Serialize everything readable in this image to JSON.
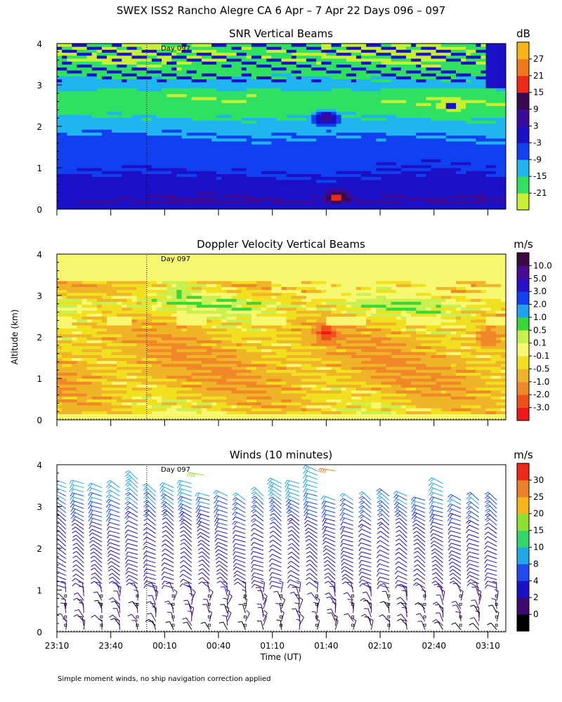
{
  "figure": {
    "title": "SWEX ISS2 Rancho Alegre CA   6 Apr –  7 Apr 22 Days 096 – 097",
    "ylabel": "Altitude (km)",
    "xlabel": "Time (UT)",
    "footnote": "Simple moment winds, no ship navigation correction applied",
    "day_marker_label": "Day 097",
    "day_marker_time": "00:00"
  },
  "colors": {
    "snr": [
      "#c8f032",
      "#30e060",
      "#20b4f0",
      "#1040f0",
      "#1a10c8",
      "#3c0a9a",
      "#3a0a50",
      "#f02818",
      "#f07818",
      "#f8b418"
    ],
    "doppler": [
      "#f01818",
      "#f05018",
      "#f08828",
      "#f0b428",
      "#f0e020",
      "#f8f870",
      "#c8f050",
      "#38d838",
      "#20a0f0",
      "#1040f0",
      "#2810c8",
      "#4a0a98",
      "#3a0a40"
    ],
    "winds": [
      "#000000",
      "#3c0a6e",
      "#1a10c8",
      "#1e4cf0",
      "#20a8e8",
      "#30d868",
      "#90e030",
      "#f8b418",
      "#f08028",
      "#f02818"
    ]
  },
  "chart_data": [
    {
      "type": "heatmap",
      "title": "SNR Vertical Beams",
      "unit": "dB",
      "xlabel": "",
      "ylabel": "Altitude (km)",
      "xlim": [
        -50,
        200
      ],
      "ylim": [
        0,
        4
      ],
      "x_tick_minutes": [
        -50,
        -20,
        10,
        40,
        70,
        100,
        130,
        160,
        190
      ],
      "x_tick_labels": [],
      "y_ticks": [
        0,
        1,
        2,
        3,
        4
      ],
      "y_tick_labels": [
        "0",
        "1",
        "2",
        "3",
        "4"
      ],
      "colorbar_labels": [
        "-21",
        "-15",
        "-9",
        "-3",
        "3",
        "9",
        "15",
        "21",
        "27"
      ],
      "colorbar_values": [
        -21,
        -15,
        -9,
        -3,
        3,
        9,
        15,
        21,
        27
      ],
      "cmin": -24,
      "cmax": 30,
      "profile_altitude_km": [
        0.15,
        0.5,
        1.0,
        1.5,
        1.8,
        2.0,
        2.2,
        2.4,
        2.6,
        2.8,
        3.0,
        3.3,
        3.6,
        3.9
      ],
      "profile_db": [
        4,
        0,
        -4,
        -7,
        -9,
        -12,
        -15,
        -18,
        -20,
        -19,
        -11,
        -18,
        -21,
        -21
      ],
      "features": [
        {
          "time_min": 106,
          "altitude_km": 0.3,
          "db": 20
        },
        {
          "time_min": 100,
          "altitude_km": 2.2,
          "db": 12
        },
        {
          "time_min": 170,
          "altitude_km": 2.5,
          "db": -26
        }
      ]
    },
    {
      "type": "heatmap",
      "title": "Doppler Velocity Vertical Beams",
      "unit": "m/s",
      "xlabel": "",
      "ylabel": "Altitude (km)",
      "xlim": [
        -50,
        200
      ],
      "ylim": [
        0,
        4
      ],
      "x_tick_minutes": [
        -50,
        -20,
        10,
        40,
        70,
        100,
        130,
        160,
        190
      ],
      "x_tick_labels": [],
      "y_ticks": [
        0,
        1,
        2,
        3,
        4
      ],
      "y_tick_labels": [
        "0",
        "1",
        "2",
        "3",
        "4"
      ],
      "colorbar_labels": [
        "-3.0",
        "-2.0",
        "-1.0",
        "-0.5",
        "-0.1",
        "0.1",
        "0.5",
        "1.0",
        "2.0",
        "3.0",
        "5.0",
        "10.0"
      ],
      "colorbar_values": [
        -3.0,
        -2.0,
        -1.0,
        -0.5,
        -0.1,
        0.1,
        0.5,
        1.0,
        2.0,
        3.0,
        5.0,
        10.0
      ],
      "profile_altitude_km": [
        0.15,
        0.6,
        1.0,
        1.5,
        2.0,
        2.4,
        2.8,
        3.2
      ],
      "profile_ms": [
        -0.3,
        -0.6,
        -0.8,
        -0.8,
        -0.7,
        -0.4,
        0.2,
        -0.5
      ],
      "features": [
        {
          "time_min": 100,
          "altitude_km": 2.1,
          "ms": -3.5
        },
        {
          "time_min": 190,
          "altitude_km": 2.0,
          "ms": -2.0
        },
        {
          "time_min": 18,
          "altitude_km": 3.05,
          "ms": 0.6
        }
      ]
    },
    {
      "type": "scatter",
      "subtype": "wind-barbs",
      "title": "Winds (10 minutes)",
      "unit": "m/s",
      "xlabel": "Time (UT)",
      "ylabel": "Altitude (km)",
      "xlim": [
        -50,
        200
      ],
      "ylim": [
        0,
        4
      ],
      "x_tick_minutes": [
        -50,
        -20,
        10,
        40,
        70,
        100,
        130,
        160,
        190
      ],
      "x_tick_labels": [
        "23:10",
        "23:40",
        "00:10",
        "00:40",
        "01:10",
        "01:40",
        "02:10",
        "02:40",
        "03:10"
      ],
      "y_ticks": [
        0,
        1,
        2,
        3,
        4
      ],
      "y_tick_labels": [
        "0",
        "1",
        "2",
        "3",
        "4"
      ],
      "colorbar_labels": [
        "0",
        "2",
        "4",
        "8",
        "10",
        "15",
        "20",
        "25",
        "30"
      ],
      "colorbar_values": [
        0,
        2,
        4,
        8,
        10,
        15,
        20,
        25,
        30
      ],
      "profile_times_min": [
        -45,
        -35,
        -25,
        -15,
        -5,
        5,
        15,
        25,
        35,
        45,
        55,
        65,
        75,
        85,
        95,
        105,
        115,
        125,
        135,
        145,
        155,
        165,
        175,
        185,
        195
      ],
      "speed_profile": {
        "altitude_km": [
          0.0,
          0.6,
          1.0,
          1.5,
          2.0,
          2.5,
          2.8,
          3.1,
          3.5
        ],
        "speed_ms": [
          2,
          3,
          4,
          5,
          6,
          7,
          9,
          10,
          12
        ]
      },
      "top_altitude_km": [
        3.6,
        3.6,
        3.5,
        3.5,
        3.7,
        3.4,
        3.5,
        3.6,
        3.3,
        3.3,
        3.2,
        3.3,
        3.6,
        3.6,
        3.9,
        3.2,
        3.2,
        3.2,
        3.3,
        3.3,
        3.2,
        3.6,
        3.2,
        3.2,
        3.2
      ],
      "extra_barbs": [
        {
          "time_min": 105,
          "altitude_km": 3.85,
          "speed_ms": 30
        },
        {
          "time_min": 32,
          "altitude_km": 3.75,
          "speed_ms": 20
        }
      ]
    }
  ]
}
